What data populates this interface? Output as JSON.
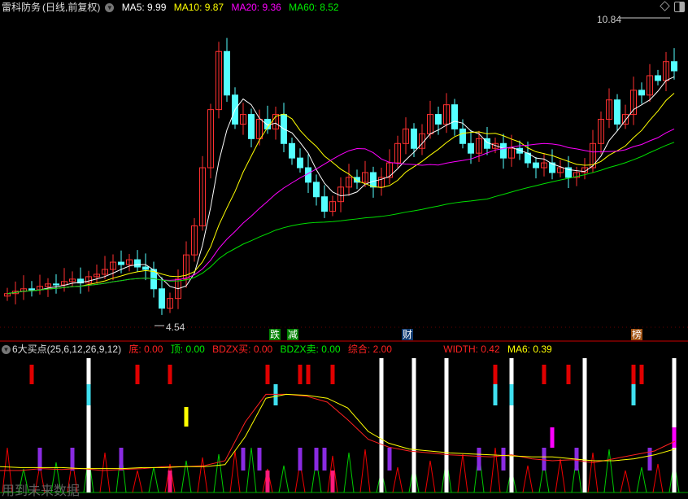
{
  "header": {
    "stock_name": "雷科防务",
    "period": "(日线,前复权)",
    "ma5": "MA5: 9.99",
    "ma10": "MA10: 9.87",
    "ma20": "MA20: 9.36",
    "ma60": "MA60: 8.52"
  },
  "indicator_header": {
    "name": "6大买点(25,6,12,26,9,12)",
    "di": "底: 0.00",
    "ding": "顶: 0.00",
    "bdzx_buy": "BDZX买: 0.00",
    "bdzx_sell": "BDZX卖: 0.00",
    "zonghe": "综合: 2.00",
    "width": "WIDTH: 0.42",
    "ma6": "MA6: 0.39"
  },
  "tags": [
    {
      "text": "跌",
      "color": "#008000"
    },
    {
      "text": "减",
      "color": "#008000"
    },
    {
      "text": "财",
      "color": "#103a70"
    },
    {
      "text": "榜",
      "color": "#a05010"
    }
  ],
  "watermark": "用到未来数据",
  "colors": {
    "up": "#ff3030",
    "down": "#54ffff",
    "ma5": "#ffffff",
    "ma10": "#ffff00",
    "ma20": "#ff00ff",
    "ma60": "#00e000"
  },
  "chart_data": {
    "type": "candlestick",
    "price_labels": {
      "high": "10.84",
      "low": "4.54"
    },
    "closes": [
      5.2,
      5.25,
      5.3,
      5.28,
      5.35,
      5.4,
      5.38,
      5.45,
      5.5,
      5.42,
      5.55,
      5.6,
      5.7,
      5.85,
      5.8,
      5.9,
      5.75,
      5.7,
      5.3,
      4.9,
      5.1,
      5.5,
      6.0,
      6.6,
      7.8,
      9.0,
      10.2,
      9.3,
      8.7,
      8.9,
      8.4,
      8.8,
      8.6,
      8.9,
      8.3,
      8.0,
      7.8,
      7.5,
      7.2,
      6.9,
      7.1,
      7.4,
      7.6,
      7.5,
      7.7,
      7.4,
      7.6,
      7.9,
      8.3,
      8.6,
      8.2,
      8.5,
      8.9,
      8.7,
      9.1,
      8.6,
      8.3,
      8.1,
      8.4,
      8.2,
      8.3,
      8.0,
      8.2,
      8.1,
      7.9,
      7.8,
      7.9,
      7.7,
      7.8,
      7.6,
      7.7,
      7.8,
      8.3,
      8.8,
      9.2,
      8.7,
      8.9,
      9.4,
      9.3,
      9.7,
      9.6,
      9.99,
      9.8
    ],
    "indicator": {
      "red_line": [
        10,
        10,
        12,
        11,
        12,
        10,
        11,
        12,
        14,
        14,
        15,
        20,
        60,
        88,
        88,
        86,
        80,
        62,
        42,
        34,
        30,
        28,
        26,
        25,
        24,
        26,
        22,
        20,
        21,
        18,
        22,
        26,
        30,
        40
      ],
      "yellow_line": [
        14,
        13,
        13,
        13,
        12,
        12,
        12,
        13,
        13,
        14,
        14,
        16,
        45,
        84,
        88,
        87,
        84,
        74,
        50,
        38,
        32,
        30,
        28,
        27,
        26,
        25,
        24,
        24,
        22,
        20,
        20,
        22,
        26,
        32
      ],
      "red_signals": [
        3,
        16,
        20,
        32,
        36,
        37,
        40,
        60,
        66,
        69,
        77,
        78,
        82
      ],
      "white_signals": [
        10,
        46,
        50,
        54,
        62,
        71,
        82
      ],
      "cyan_signals": [
        10,
        33,
        60,
        62,
        77
      ],
      "yellow_signals": [
        22
      ],
      "magenta_signals": [
        67,
        82
      ],
      "purple_signals": [
        4,
        8,
        14,
        29,
        31,
        36,
        38,
        39,
        47,
        58,
        61,
        66,
        70,
        79
      ],
      "pink_signals": [
        20,
        32,
        40,
        46,
        50,
        54,
        62,
        71,
        82
      ]
    }
  }
}
